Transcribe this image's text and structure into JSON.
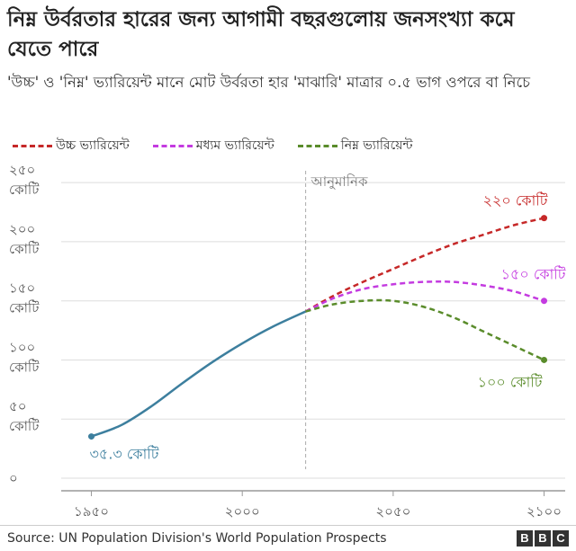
{
  "title": "নিম্ন উর্বরতার হারের জন্য আগামী বছরগুলোয় জনসংখ্যা কমে যেতে পারে",
  "subtitle": "'উচ্চ' ও 'নিম্ন' ভ্যারিয়েন্ট মানে মোট উর্বরতা হার 'মাঝারি' মাত্রার ০.৫ ভাগ ওপরে বা নিচে",
  "legend": [
    {
      "label": "উচ্চ ভ্যারিয়েন্ট",
      "color": "#c62828"
    },
    {
      "label": "মধ্যম ভ্যারিয়েন্ট",
      "color": "#c43be0"
    },
    {
      "label": "নিম্ন ভ্যারিয়েন্ট",
      "color": "#5a8c2b"
    }
  ],
  "source": "Source: UN Population Division's World Population Prospects",
  "logo": [
    "B",
    "B",
    "C"
  ],
  "chart_data": {
    "type": "line",
    "x_ticks": [
      1950,
      2000,
      2050,
      2100
    ],
    "x_tick_labels": [
      "১৯৫০",
      "২০০০",
      "২০৫০",
      "২১০০"
    ],
    "y_ticks": [
      0,
      50,
      100,
      150,
      200,
      250
    ],
    "y_tick_labels": [
      [
        "০"
      ],
      [
        "৫০",
        "কোটি"
      ],
      [
        "১০০",
        "কোটি"
      ],
      [
        "১৫০",
        "কোটি"
      ],
      [
        "২০০",
        "কোটি"
      ],
      [
        "২৫০",
        "কোটি"
      ]
    ],
    "xlim": [
      1940,
      2107
    ],
    "ylim": [
      0,
      260
    ],
    "grid": true,
    "projection_year": 2021,
    "projection_label": "আনুমানিক",
    "series": [
      {
        "key": "historic",
        "color": "#3d7f9e",
        "dashed": false,
        "x": [
          1950,
          1960,
          1970,
          1980,
          1990,
          2000,
          2010,
          2021
        ],
        "y": [
          35.3,
          45,
          61,
          80,
          98,
          114,
          128,
          141
        ]
      },
      {
        "key": "high",
        "color": "#c62828",
        "dashed": true,
        "x": [
          2021,
          2030,
          2040,
          2050,
          2060,
          2070,
          2080,
          2090,
          2100
        ],
        "y": [
          141,
          154,
          166,
          177,
          188,
          198,
          206,
          214,
          220
        ]
      },
      {
        "key": "medium",
        "color": "#c43be0",
        "dashed": true,
        "x": [
          2021,
          2030,
          2040,
          2050,
          2060,
          2070,
          2080,
          2090,
          2100
        ],
        "y": [
          141,
          152,
          160,
          164,
          166,
          166,
          163,
          158,
          150
        ]
      },
      {
        "key": "low",
        "color": "#5a8c2b",
        "dashed": true,
        "x": [
          2021,
          2030,
          2040,
          2050,
          2060,
          2070,
          2080,
          2090,
          2100
        ],
        "y": [
          141,
          147,
          150,
          150,
          145,
          136,
          124,
          112,
          100
        ]
      }
    ],
    "annotations": [
      {
        "text": "৩৫.৩ কোটি",
        "series": "historic",
        "color": "#3d7f9e"
      },
      {
        "text": "২২০ কোটি",
        "series": "high",
        "color": "#c62828"
      },
      {
        "text": "১৫০ কোটি",
        "series": "medium",
        "color": "#c43be0"
      },
      {
        "text": "১০০ কোটি",
        "series": "low",
        "color": "#5a8c2b"
      }
    ]
  }
}
